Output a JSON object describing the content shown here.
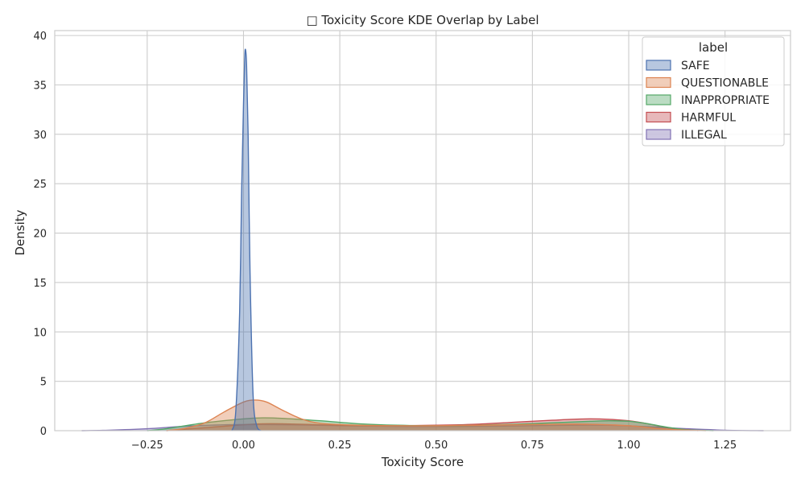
{
  "chart_data": {
    "type": "area",
    "title": "□ Toxicity Score KDE Overlap by Label",
    "xlabel": "Toxicity Score",
    "ylabel": "Density",
    "xlim": [
      -0.49,
      1.42
    ],
    "ylim": [
      0,
      40.5
    ],
    "xticks": [
      -0.25,
      0.0,
      0.25,
      0.5,
      0.75,
      1.0,
      1.25
    ],
    "xtick_labels": [
      "−0.25",
      "0.00",
      "0.25",
      "0.50",
      "0.75",
      "1.00",
      "1.25"
    ],
    "yticks": [
      0,
      5,
      10,
      15,
      20,
      25,
      30,
      35,
      40
    ],
    "ytick_labels": [
      "0",
      "5",
      "10",
      "15",
      "20",
      "25",
      "30",
      "35",
      "40"
    ],
    "grid": true,
    "legend_title": "label",
    "legend_position": "top-right",
    "fill_alpha": 0.4,
    "series": [
      {
        "name": "SAFE",
        "color": "#4c72b0",
        "x": [
          -0.03,
          -0.02,
          -0.01,
          -0.005,
          0.0,
          0.003,
          0.005,
          0.008,
          0.012,
          0.017,
          0.025,
          0.035,
          0.045
        ],
        "y": [
          0.0,
          2.0,
          12.0,
          24.0,
          33.0,
          37.5,
          38.6,
          37.0,
          30.0,
          16.0,
          3.5,
          0.4,
          0.0
        ]
      },
      {
        "name": "QUESTIONABLE",
        "color": "#dd8452",
        "x": [
          -0.2,
          -0.15,
          -0.1,
          -0.05,
          0.0,
          0.03,
          0.06,
          0.1,
          0.15,
          0.2,
          0.3,
          0.4,
          0.5,
          0.6,
          0.7,
          0.8,
          0.9,
          1.0,
          1.1,
          1.2
        ],
        "y": [
          0.0,
          0.25,
          0.8,
          1.9,
          2.9,
          3.1,
          2.9,
          2.1,
          1.2,
          0.75,
          0.55,
          0.5,
          0.5,
          0.55,
          0.6,
          0.65,
          0.65,
          0.5,
          0.15,
          0.0
        ]
      },
      {
        "name": "INAPPROPRIATE",
        "color": "#55a868",
        "x": [
          -0.25,
          -0.2,
          -0.1,
          0.0,
          0.05,
          0.1,
          0.2,
          0.3,
          0.4,
          0.5,
          0.6,
          0.7,
          0.8,
          0.9,
          0.95,
          1.0,
          1.05,
          1.1,
          1.15,
          1.22
        ],
        "y": [
          0.0,
          0.2,
          0.8,
          1.2,
          1.3,
          1.25,
          1.0,
          0.7,
          0.55,
          0.5,
          0.55,
          0.65,
          0.8,
          0.95,
          1.0,
          0.95,
          0.7,
          0.35,
          0.1,
          0.0
        ]
      },
      {
        "name": "HARMFUL",
        "color": "#c44e52",
        "x": [
          -0.2,
          -0.1,
          0.0,
          0.05,
          0.1,
          0.2,
          0.3,
          0.4,
          0.5,
          0.6,
          0.7,
          0.8,
          0.85,
          0.9,
          0.95,
          1.0,
          1.05,
          1.1,
          1.18
        ],
        "y": [
          0.0,
          0.3,
          0.6,
          0.7,
          0.7,
          0.6,
          0.5,
          0.5,
          0.55,
          0.65,
          0.85,
          1.05,
          1.15,
          1.2,
          1.15,
          1.0,
          0.7,
          0.3,
          0.0
        ]
      },
      {
        "name": "ILLEGAL",
        "color": "#8172b3",
        "x": [
          -0.42,
          -0.35,
          -0.25,
          -0.15,
          -0.05,
          0.05,
          0.15,
          0.25,
          0.35,
          0.45,
          0.55,
          0.65,
          0.75,
          0.85,
          0.95,
          1.05,
          1.15,
          1.25,
          1.35
        ],
        "y": [
          0.0,
          0.05,
          0.2,
          0.45,
          0.6,
          0.62,
          0.58,
          0.5,
          0.45,
          0.42,
          0.42,
          0.45,
          0.5,
          0.55,
          0.55,
          0.4,
          0.2,
          0.05,
          0.0
        ]
      }
    ]
  }
}
